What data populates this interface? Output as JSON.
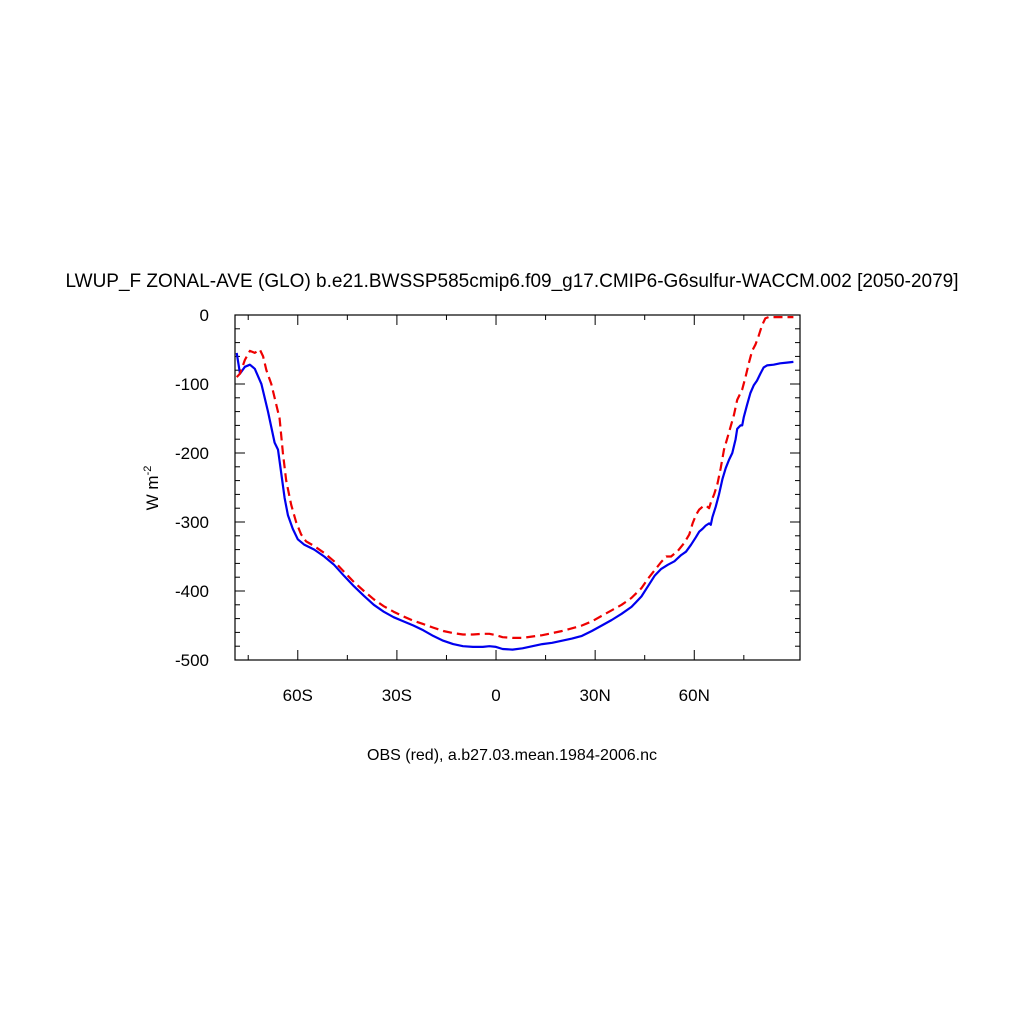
{
  "chart_data": {
    "type": "line",
    "title": "LWUP_F ZONAL-AVE (GLO) b.e21.BWSSP585cmip6.f09_g17.CMIP6-G6sulfur-WACCM.002 [2050-2079]",
    "xlabel": "OBS (red), a.b27.03.mean.1984-2006.nc",
    "ylabel_base": "W m",
    "ylabel_sup": "-2",
    "xlim": [
      -79,
      92
    ],
    "ylim": [
      -500,
      0
    ],
    "x_ticks": [
      {
        "value": -60,
        "label": "60S"
      },
      {
        "value": -30,
        "label": "30S"
      },
      {
        "value": 0,
        "label": "0"
      },
      {
        "value": 30,
        "label": "30N"
      },
      {
        "value": 60,
        "label": "60N"
      }
    ],
    "y_ticks": [
      {
        "value": 0,
        "label": "0"
      },
      {
        "value": -100,
        "label": "-100"
      },
      {
        "value": -200,
        "label": "-200"
      },
      {
        "value": -300,
        "label": "-300"
      },
      {
        "value": -400,
        "label": "-400"
      },
      {
        "value": -500,
        "label": "-500"
      }
    ],
    "series": [
      {
        "color": "#0000ee",
        "dash": "solid",
        "points": [
          [
            -78.5,
            -55
          ],
          [
            -77.5,
            -85
          ],
          [
            -76,
            -75
          ],
          [
            -74.5,
            -72
          ],
          [
            -73,
            -78
          ],
          [
            -71,
            -100
          ],
          [
            -69,
            -140
          ],
          [
            -67,
            -185
          ],
          [
            -66,
            -195
          ],
          [
            -65,
            -230
          ],
          [
            -64,
            -265
          ],
          [
            -63,
            -290
          ],
          [
            -61.5,
            -310
          ],
          [
            -60,
            -325
          ],
          [
            -58,
            -333
          ],
          [
            -55,
            -340
          ],
          [
            -52,
            -350
          ],
          [
            -49,
            -362
          ],
          [
            -46,
            -378
          ],
          [
            -43,
            -393
          ],
          [
            -40,
            -407
          ],
          [
            -37,
            -420
          ],
          [
            -34,
            -430
          ],
          [
            -31,
            -438
          ],
          [
            -28,
            -444
          ],
          [
            -25,
            -450
          ],
          [
            -22,
            -457
          ],
          [
            -19,
            -465
          ],
          [
            -16,
            -472
          ],
          [
            -13,
            -477
          ],
          [
            -10,
            -480
          ],
          [
            -7,
            -481
          ],
          [
            -4,
            -481
          ],
          [
            -2,
            -480
          ],
          [
            0,
            -481
          ],
          [
            2,
            -484
          ],
          [
            5,
            -485
          ],
          [
            8,
            -483
          ],
          [
            11,
            -480
          ],
          [
            14,
            -477
          ],
          [
            17,
            -475
          ],
          [
            20,
            -472
          ],
          [
            23,
            -469
          ],
          [
            26,
            -465
          ],
          [
            29,
            -458
          ],
          [
            32,
            -450
          ],
          [
            35,
            -442
          ],
          [
            38,
            -433
          ],
          [
            41,
            -423
          ],
          [
            44,
            -408
          ],
          [
            46,
            -393
          ],
          [
            48,
            -378
          ],
          [
            50,
            -368
          ],
          [
            52,
            -362
          ],
          [
            54,
            -357
          ],
          [
            56,
            -348
          ],
          [
            57.5,
            -343
          ],
          [
            59,
            -333
          ],
          [
            60.5,
            -322
          ],
          [
            61.5,
            -314
          ],
          [
            62.5,
            -310
          ],
          [
            63.5,
            -305
          ],
          [
            64.5,
            -302
          ],
          [
            65,
            -304
          ],
          [
            65.5,
            -293
          ],
          [
            66.5,
            -278
          ],
          [
            67.5,
            -260
          ],
          [
            68.5,
            -238
          ],
          [
            69.5,
            -222
          ],
          [
            70.5,
            -210
          ],
          [
            71.5,
            -200
          ],
          [
            72.5,
            -180
          ],
          [
            73,
            -165
          ],
          [
            74,
            -160
          ],
          [
            74.5,
            -160
          ],
          [
            75,
            -148
          ],
          [
            76,
            -130
          ],
          [
            77,
            -113
          ],
          [
            78,
            -102
          ],
          [
            79,
            -95
          ],
          [
            80,
            -85
          ],
          [
            81,
            -76
          ],
          [
            82,
            -73
          ],
          [
            84,
            -72
          ],
          [
            86,
            -70
          ],
          [
            88,
            -69
          ],
          [
            90,
            -68
          ]
        ]
      },
      {
        "color": "#ee0000",
        "dash": "dashed",
        "points": [
          [
            -78.5,
            -90
          ],
          [
            -77.5,
            -85
          ],
          [
            -76,
            -65
          ],
          [
            -74.5,
            -52
          ],
          [
            -73,
            -55
          ],
          [
            -71.5,
            -50
          ],
          [
            -70.5,
            -60
          ],
          [
            -69.5,
            -80
          ],
          [
            -68,
            -100
          ],
          [
            -66.5,
            -130
          ],
          [
            -65.5,
            -150
          ],
          [
            -64.5,
            -200
          ],
          [
            -63.5,
            -240
          ],
          [
            -62,
            -275
          ],
          [
            -60.5,
            -300
          ],
          [
            -59,
            -318
          ],
          [
            -57.5,
            -328
          ],
          [
            -55,
            -335
          ],
          [
            -52,
            -345
          ],
          [
            -49,
            -357
          ],
          [
            -46,
            -372
          ],
          [
            -43,
            -387
          ],
          [
            -40,
            -400
          ],
          [
            -37,
            -412
          ],
          [
            -34,
            -422
          ],
          [
            -31,
            -430
          ],
          [
            -28,
            -437
          ],
          [
            -25,
            -443
          ],
          [
            -22,
            -448
          ],
          [
            -19,
            -453
          ],
          [
            -16,
            -458
          ],
          [
            -13,
            -461
          ],
          [
            -10,
            -463
          ],
          [
            -7,
            -463
          ],
          [
            -4,
            -462
          ],
          [
            -2,
            -462
          ],
          [
            0,
            -464
          ],
          [
            2,
            -467
          ],
          [
            5,
            -468
          ],
          [
            8,
            -468
          ],
          [
            11,
            -466
          ],
          [
            14,
            -464
          ],
          [
            17,
            -461
          ],
          [
            20,
            -458
          ],
          [
            23,
            -454
          ],
          [
            26,
            -450
          ],
          [
            29,
            -444
          ],
          [
            32,
            -436
          ],
          [
            35,
            -428
          ],
          [
            38,
            -420
          ],
          [
            41,
            -410
          ],
          [
            44,
            -396
          ],
          [
            46,
            -382
          ],
          [
            48,
            -370
          ],
          [
            50,
            -358
          ],
          [
            51.5,
            -350
          ],
          [
            53,
            -350
          ],
          [
            55,
            -342
          ],
          [
            57,
            -330
          ],
          [
            58.5,
            -318
          ],
          [
            59.5,
            -302
          ],
          [
            60.5,
            -290
          ],
          [
            61.5,
            -282
          ],
          [
            62.5,
            -278
          ],
          [
            63.5,
            -276
          ],
          [
            64.5,
            -280
          ],
          [
            65,
            -272
          ],
          [
            66,
            -260
          ],
          [
            67,
            -245
          ],
          [
            68,
            -222
          ],
          [
            69,
            -195
          ],
          [
            70.5,
            -170
          ],
          [
            72,
            -145
          ],
          [
            73,
            -123
          ],
          [
            74.5,
            -108
          ],
          [
            75.5,
            -90
          ],
          [
            76.5,
            -70
          ],
          [
            77.5,
            -52
          ],
          [
            78.5,
            -43
          ],
          [
            79.5,
            -30
          ],
          [
            80.5,
            -15
          ],
          [
            81.5,
            -5
          ],
          [
            82.5,
            -3
          ],
          [
            84,
            -3
          ],
          [
            86,
            -3
          ],
          [
            88,
            -3
          ],
          [
            90,
            -3
          ]
        ]
      }
    ]
  }
}
